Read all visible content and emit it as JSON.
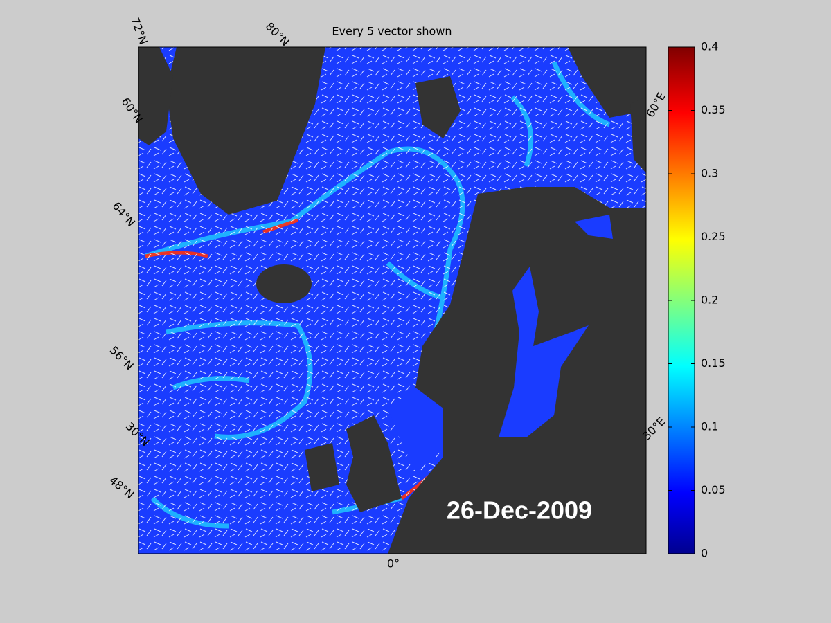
{
  "title": "Every 5 vector shown",
  "date_label": "26-Dec-2009",
  "graticule_labels": [
    "72°N",
    "80°N",
    "60°N",
    "64°N",
    "56°N",
    "30°N",
    "48°N",
    "0°",
    "30°E",
    "60°E"
  ],
  "colorbar": {
    "lim": [
      0,
      0.4
    ],
    "ticks": [
      0,
      0.05,
      0.1,
      0.15,
      0.2,
      0.25,
      0.3,
      0.35,
      0.4
    ]
  }
}
